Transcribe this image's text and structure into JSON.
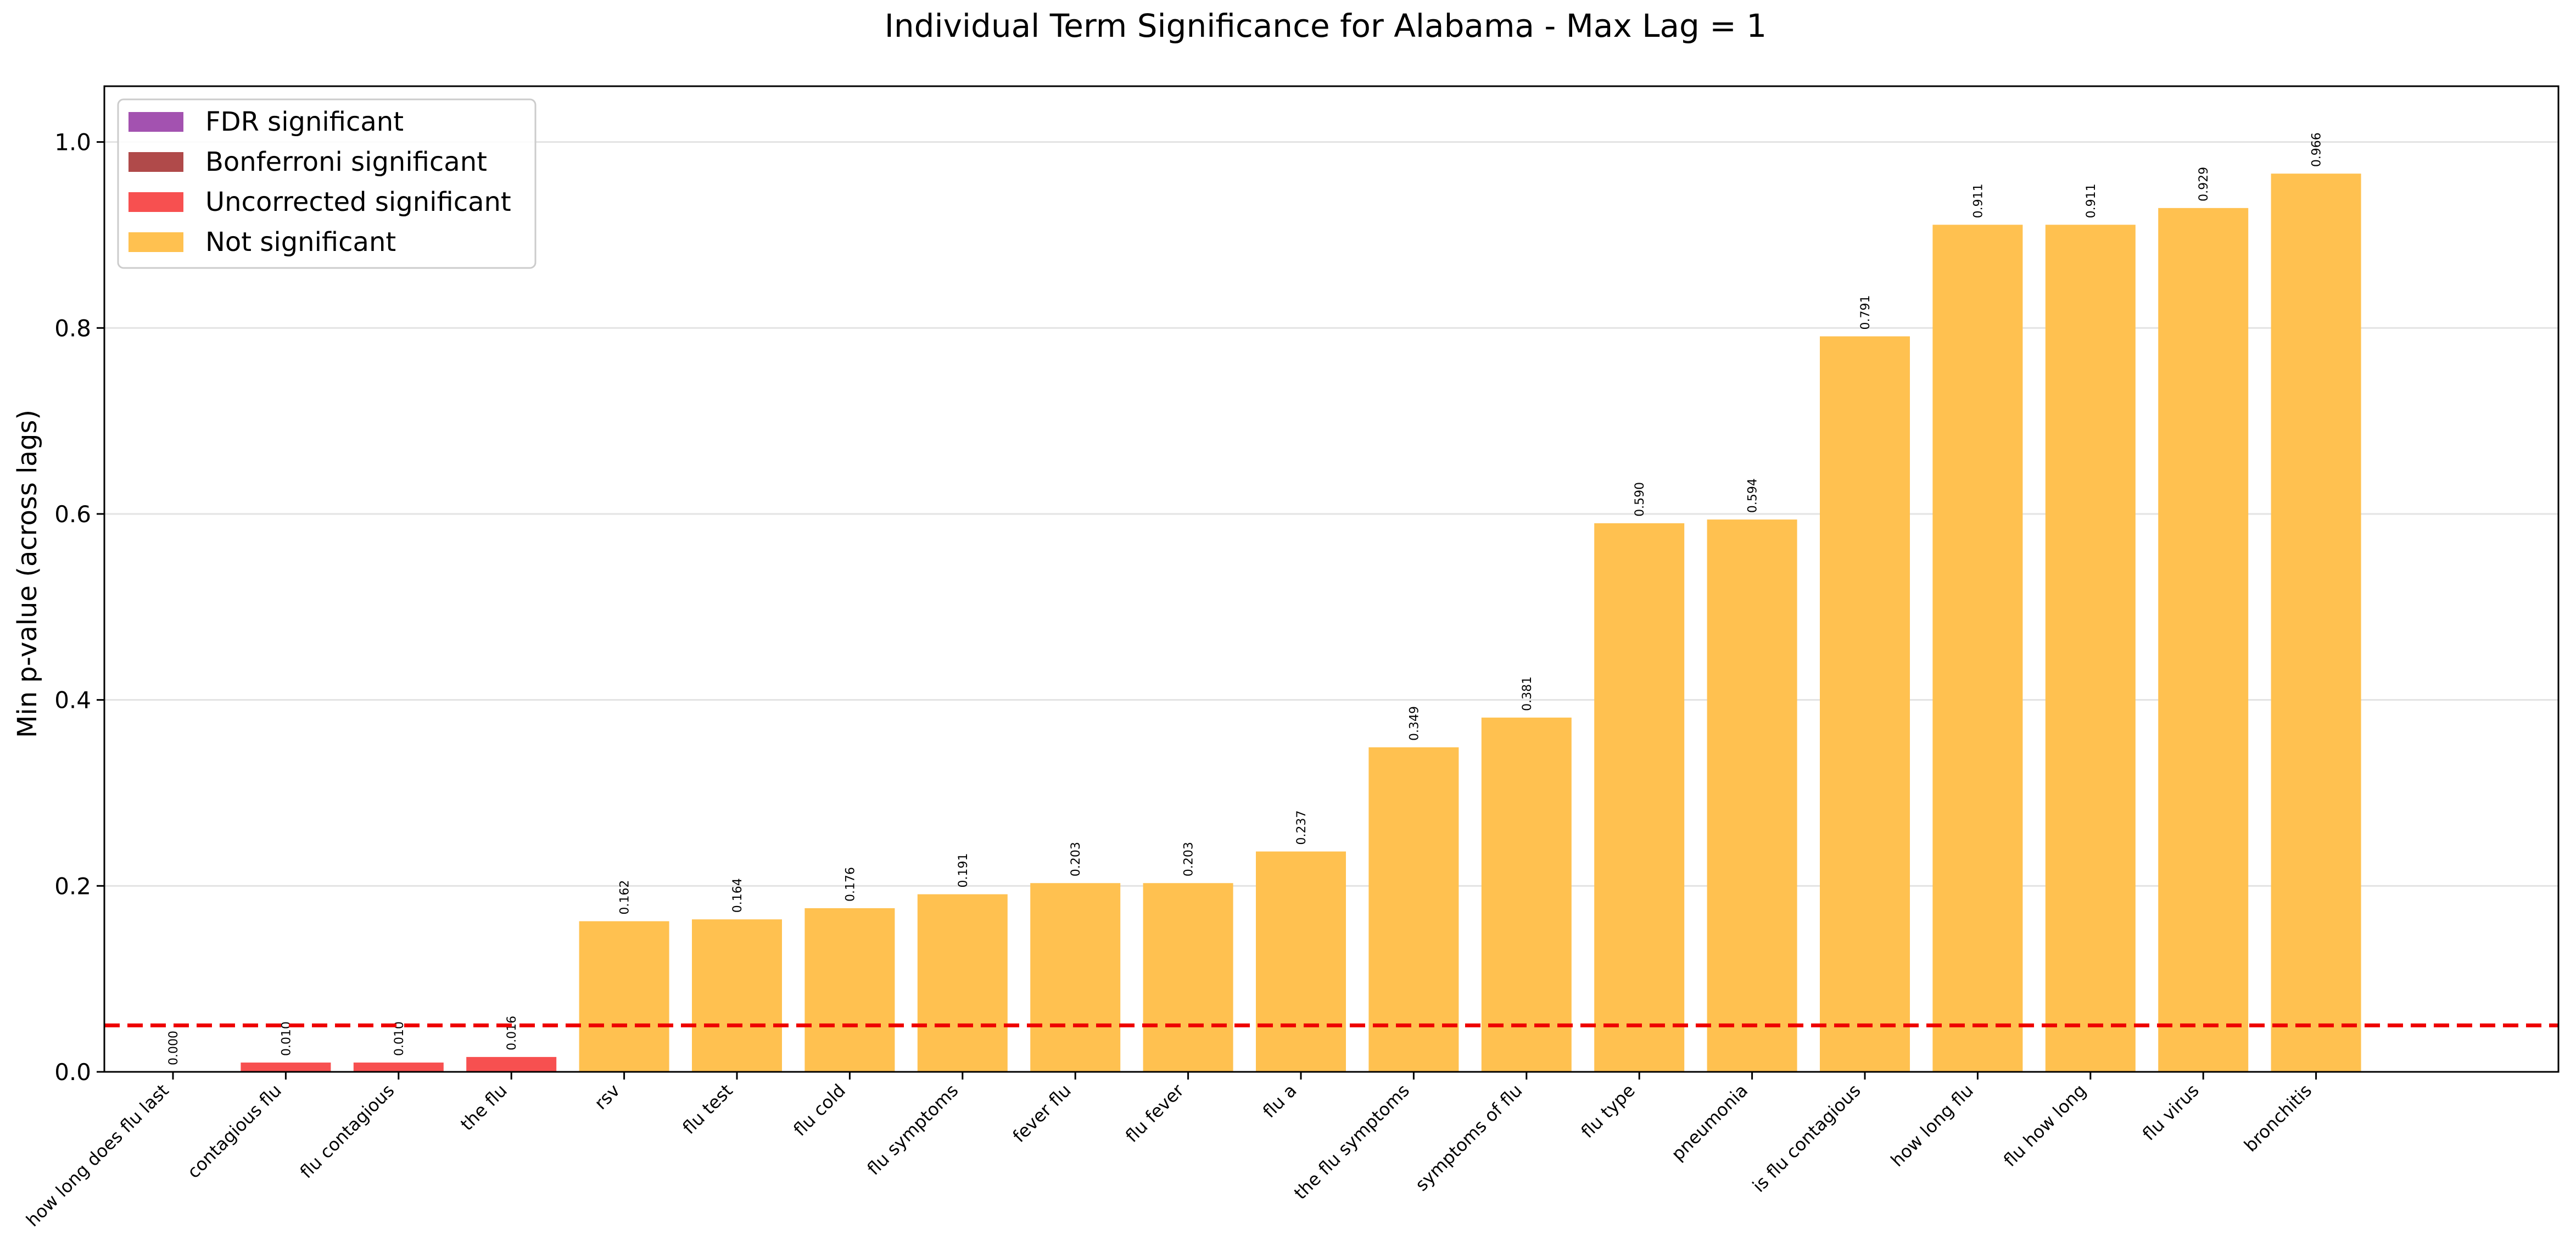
{
  "chart_data": {
    "type": "bar",
    "title": "Individual Term Significance for Alabama - Max Lag = 1",
    "xlabel": "",
    "ylabel": "Min p-value (across lags)",
    "ylim": [
      0,
      1.06
    ],
    "yticks": [
      "0.0",
      "0.2",
      "0.4",
      "0.6",
      "0.8",
      "1.0"
    ],
    "ytick_values": [
      0,
      0.2,
      0.4,
      0.6,
      0.8,
      1.0
    ],
    "grid": "horizontal",
    "threshold": 0.05,
    "threshold_color": "#ee0000",
    "legend_position": "top-left",
    "legend": [
      {
        "label": "FDR significant",
        "color": "#a352b0"
      },
      {
        "label": "Bonferroni significant",
        "color": "#b04a4a"
      },
      {
        "label": "Uncorrected significant",
        "color": "#f75050"
      },
      {
        "label": "Not significant",
        "color": "#ffc150"
      }
    ],
    "categories": [
      "how long does flu last",
      "contagious flu",
      "flu contagious",
      "the flu",
      "rsv",
      "flu test",
      "flu cold",
      "flu symptoms",
      "fever flu",
      "flu fever",
      "flu a",
      "the flu symptoms",
      "symptoms of flu",
      "flu type",
      "pneumonia",
      "is flu contagious",
      "how long flu",
      "flu how long",
      "flu virus",
      "bronchitis"
    ],
    "values": [
      0.0,
      0.01,
      0.01,
      0.016,
      0.162,
      0.164,
      0.176,
      0.191,
      0.203,
      0.203,
      0.237,
      0.349,
      0.381,
      0.59,
      0.594,
      0.791,
      0.911,
      0.911,
      0.929,
      0.966
    ],
    "value_labels": [
      "0.000",
      "0.010",
      "0.010",
      "0.016",
      "0.162",
      "0.164",
      "0.176",
      "0.191",
      "0.203",
      "0.203",
      "0.237",
      "0.349",
      "0.381",
      "0.590",
      "0.594",
      "0.791",
      "0.911",
      "0.911",
      "0.929",
      "0.966"
    ],
    "significance": [
      "Uncorrected significant",
      "Uncorrected significant",
      "Uncorrected significant",
      "Uncorrected significant",
      "Not significant",
      "Not significant",
      "Not significant",
      "Not significant",
      "Not significant",
      "Not significant",
      "Not significant",
      "Not significant",
      "Not significant",
      "Not significant",
      "Not significant",
      "Not significant",
      "Not significant",
      "Not significant",
      "Not significant",
      "Not significant"
    ]
  }
}
